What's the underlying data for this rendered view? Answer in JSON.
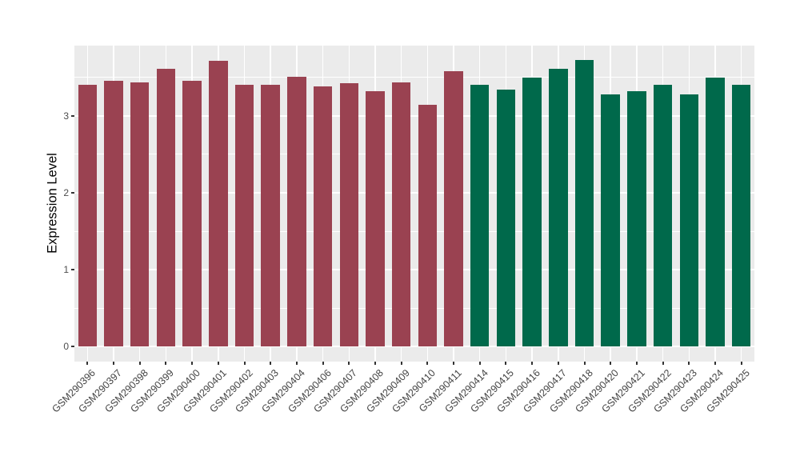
{
  "chart_data": {
    "type": "bar",
    "title": "",
    "ylabel": "Expression Level",
    "xlabel": "",
    "categories": [
      "GSM290396",
      "GSM290397",
      "GSM290398",
      "GSM290399",
      "GSM290400",
      "GSM290401",
      "GSM290402",
      "GSM290403",
      "GSM290404",
      "GSM290406",
      "GSM290407",
      "GSM290408",
      "GSM290409",
      "GSM290410",
      "GSM290411",
      "GSM290414",
      "GSM290415",
      "GSM290416",
      "GSM290417",
      "GSM290418",
      "GSM290420",
      "GSM290421",
      "GSM290422",
      "GSM290423",
      "GSM290424",
      "GSM290425"
    ],
    "values": [
      3.41,
      3.46,
      3.44,
      3.61,
      3.46,
      3.72,
      3.41,
      3.4,
      3.51,
      3.38,
      3.43,
      3.32,
      3.44,
      3.14,
      3.58,
      3.4,
      3.34,
      3.5,
      3.61,
      3.73,
      3.28,
      3.32,
      3.4,
      3.28,
      3.5,
      3.41
    ],
    "groups": [
      "group1",
      "group1",
      "group1",
      "group1",
      "group1",
      "group1",
      "group1",
      "group1",
      "group1",
      "group1",
      "group1",
      "group1",
      "group1",
      "group1",
      "group1",
      "group2",
      "group2",
      "group2",
      "group2",
      "group2",
      "group2",
      "group2",
      "group2",
      "group2",
      "group2",
      "group2"
    ],
    "group_colors": {
      "group1": "#9A4251",
      "group2": "#00694B"
    },
    "y_ticks": [
      0,
      1,
      2,
      3
    ],
    "y_minor_ticks": [
      0.5,
      1.5,
      2.5,
      3.5
    ],
    "ylim": [
      -0.195,
      3.915
    ],
    "bar_width_fraction": 0.72,
    "panel_bg": "#EBEBEB",
    "grid_color": "#FFFFFF",
    "legend": "none",
    "x_tick_angle": 45
  }
}
